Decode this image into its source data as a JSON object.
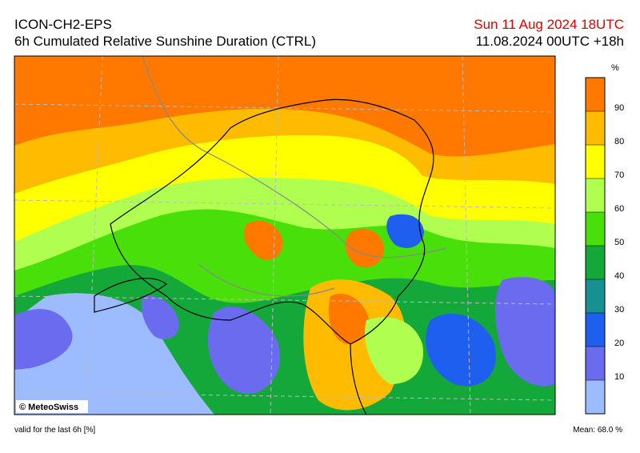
{
  "header": {
    "model": "ICON-CH2-EPS",
    "title": "6h Cumulated Relative Sunshine Duration (CTRL)",
    "valid_time": "Sun 11 Aug 2024 18UTC",
    "run": "11.08.2024 00UTC +18h"
  },
  "map": {
    "credit": "© MeteoSwiss"
  },
  "colorbar": {
    "unit": "%",
    "range": [
      0,
      100
    ],
    "ticks": [
      10,
      20,
      30,
      40,
      50,
      60,
      70,
      80,
      90
    ],
    "colors": [
      "#9dbbff",
      "#6b6bef",
      "#1f5ff0",
      "#169090",
      "#14a83a",
      "#48df0a",
      "#b0ff50",
      "#ffff00",
      "#ffbb00",
      "#ff7800"
    ]
  },
  "footer": {
    "note": "valid for the last 6h [%]",
    "mean": "Mean:  68.0 %"
  }
}
